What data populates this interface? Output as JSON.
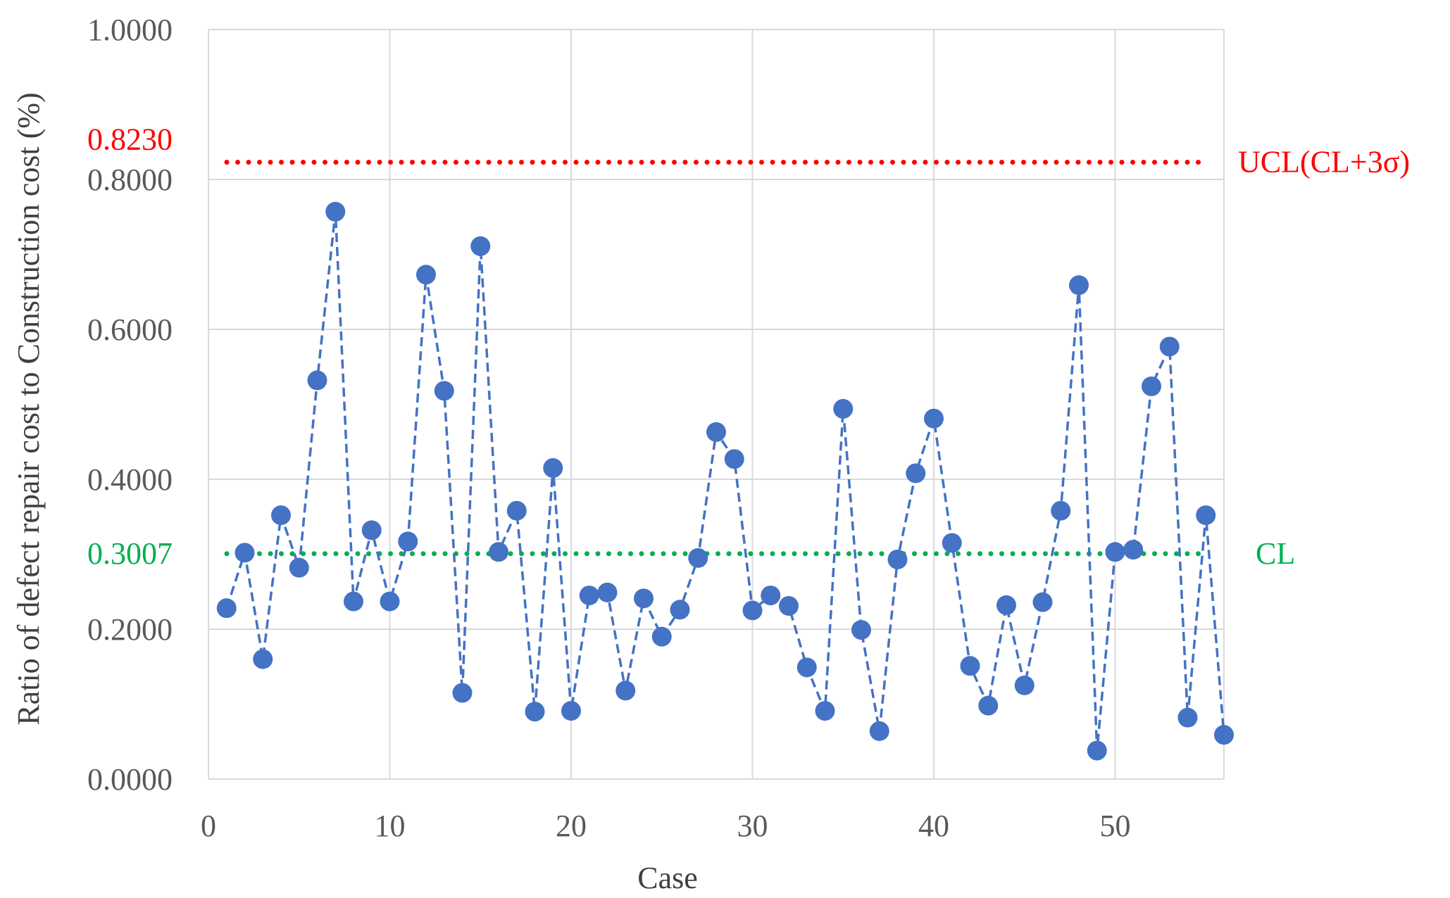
{
  "chart_data": {
    "type": "scatter",
    "title": "",
    "xlabel": "Case",
    "ylabel": "Ratio of defect repair cost to Construction cost (%)",
    "xlim": [
      0,
      56
    ],
    "ylim": [
      0,
      1
    ],
    "x_ticks": [
      0,
      10,
      20,
      30,
      40,
      50
    ],
    "x_tick_labels": [
      "0",
      "10",
      "20",
      "30",
      "40",
      "50"
    ],
    "y_ticks": [
      0,
      0.2,
      0.4,
      0.6,
      0.8,
      1.0
    ],
    "y_tick_labels": [
      "0.0000",
      "0.2000",
      "0.4000",
      "0.6000",
      "0.8000",
      "1.0000"
    ],
    "grid": true,
    "series": [
      {
        "name": "Ratio",
        "color": "#4472C4",
        "line_style": "dashed",
        "marker": "circle",
        "x": [
          1,
          2,
          3,
          4,
          5,
          6,
          7,
          8,
          9,
          10,
          11,
          12,
          13,
          14,
          15,
          16,
          17,
          18,
          19,
          20,
          21,
          22,
          23,
          24,
          25,
          26,
          27,
          28,
          29,
          30,
          31,
          32,
          33,
          34,
          35,
          36,
          37,
          38,
          39,
          40,
          41,
          42,
          43,
          44,
          45,
          46,
          47,
          48,
          49,
          50,
          51,
          52,
          53,
          54,
          55,
          56
        ],
        "y": [
          0.228,
          0.302,
          0.16,
          0.352,
          0.282,
          0.532,
          0.757,
          0.237,
          0.332,
          0.237,
          0.317,
          0.673,
          0.518,
          0.115,
          0.711,
          0.303,
          0.358,
          0.09,
          0.415,
          0.091,
          0.245,
          0.249,
          0.118,
          0.241,
          0.19,
          0.226,
          0.295,
          0.463,
          0.427,
          0.225,
          0.245,
          0.231,
          0.149,
          0.091,
          0.494,
          0.199,
          0.064,
          0.293,
          0.408,
          0.481,
          0.315,
          0.151,
          0.098,
          0.232,
          0.125,
          0.236,
          0.358,
          0.659,
          0.038,
          0.303,
          0.306,
          0.524,
          0.577,
          0.082,
          0.352,
          0.059
        ]
      }
    ],
    "reference_lines": [
      {
        "name": "UCL",
        "value": 0.823,
        "value_label": "0.8230",
        "label": "UCL(CL+3σ)",
        "color": "#FF0000",
        "style": "dotted"
      },
      {
        "name": "CL",
        "value": 0.3007,
        "value_label": "0.3007",
        "label": "CL",
        "color": "#00B050",
        "style": "dotted"
      }
    ]
  }
}
